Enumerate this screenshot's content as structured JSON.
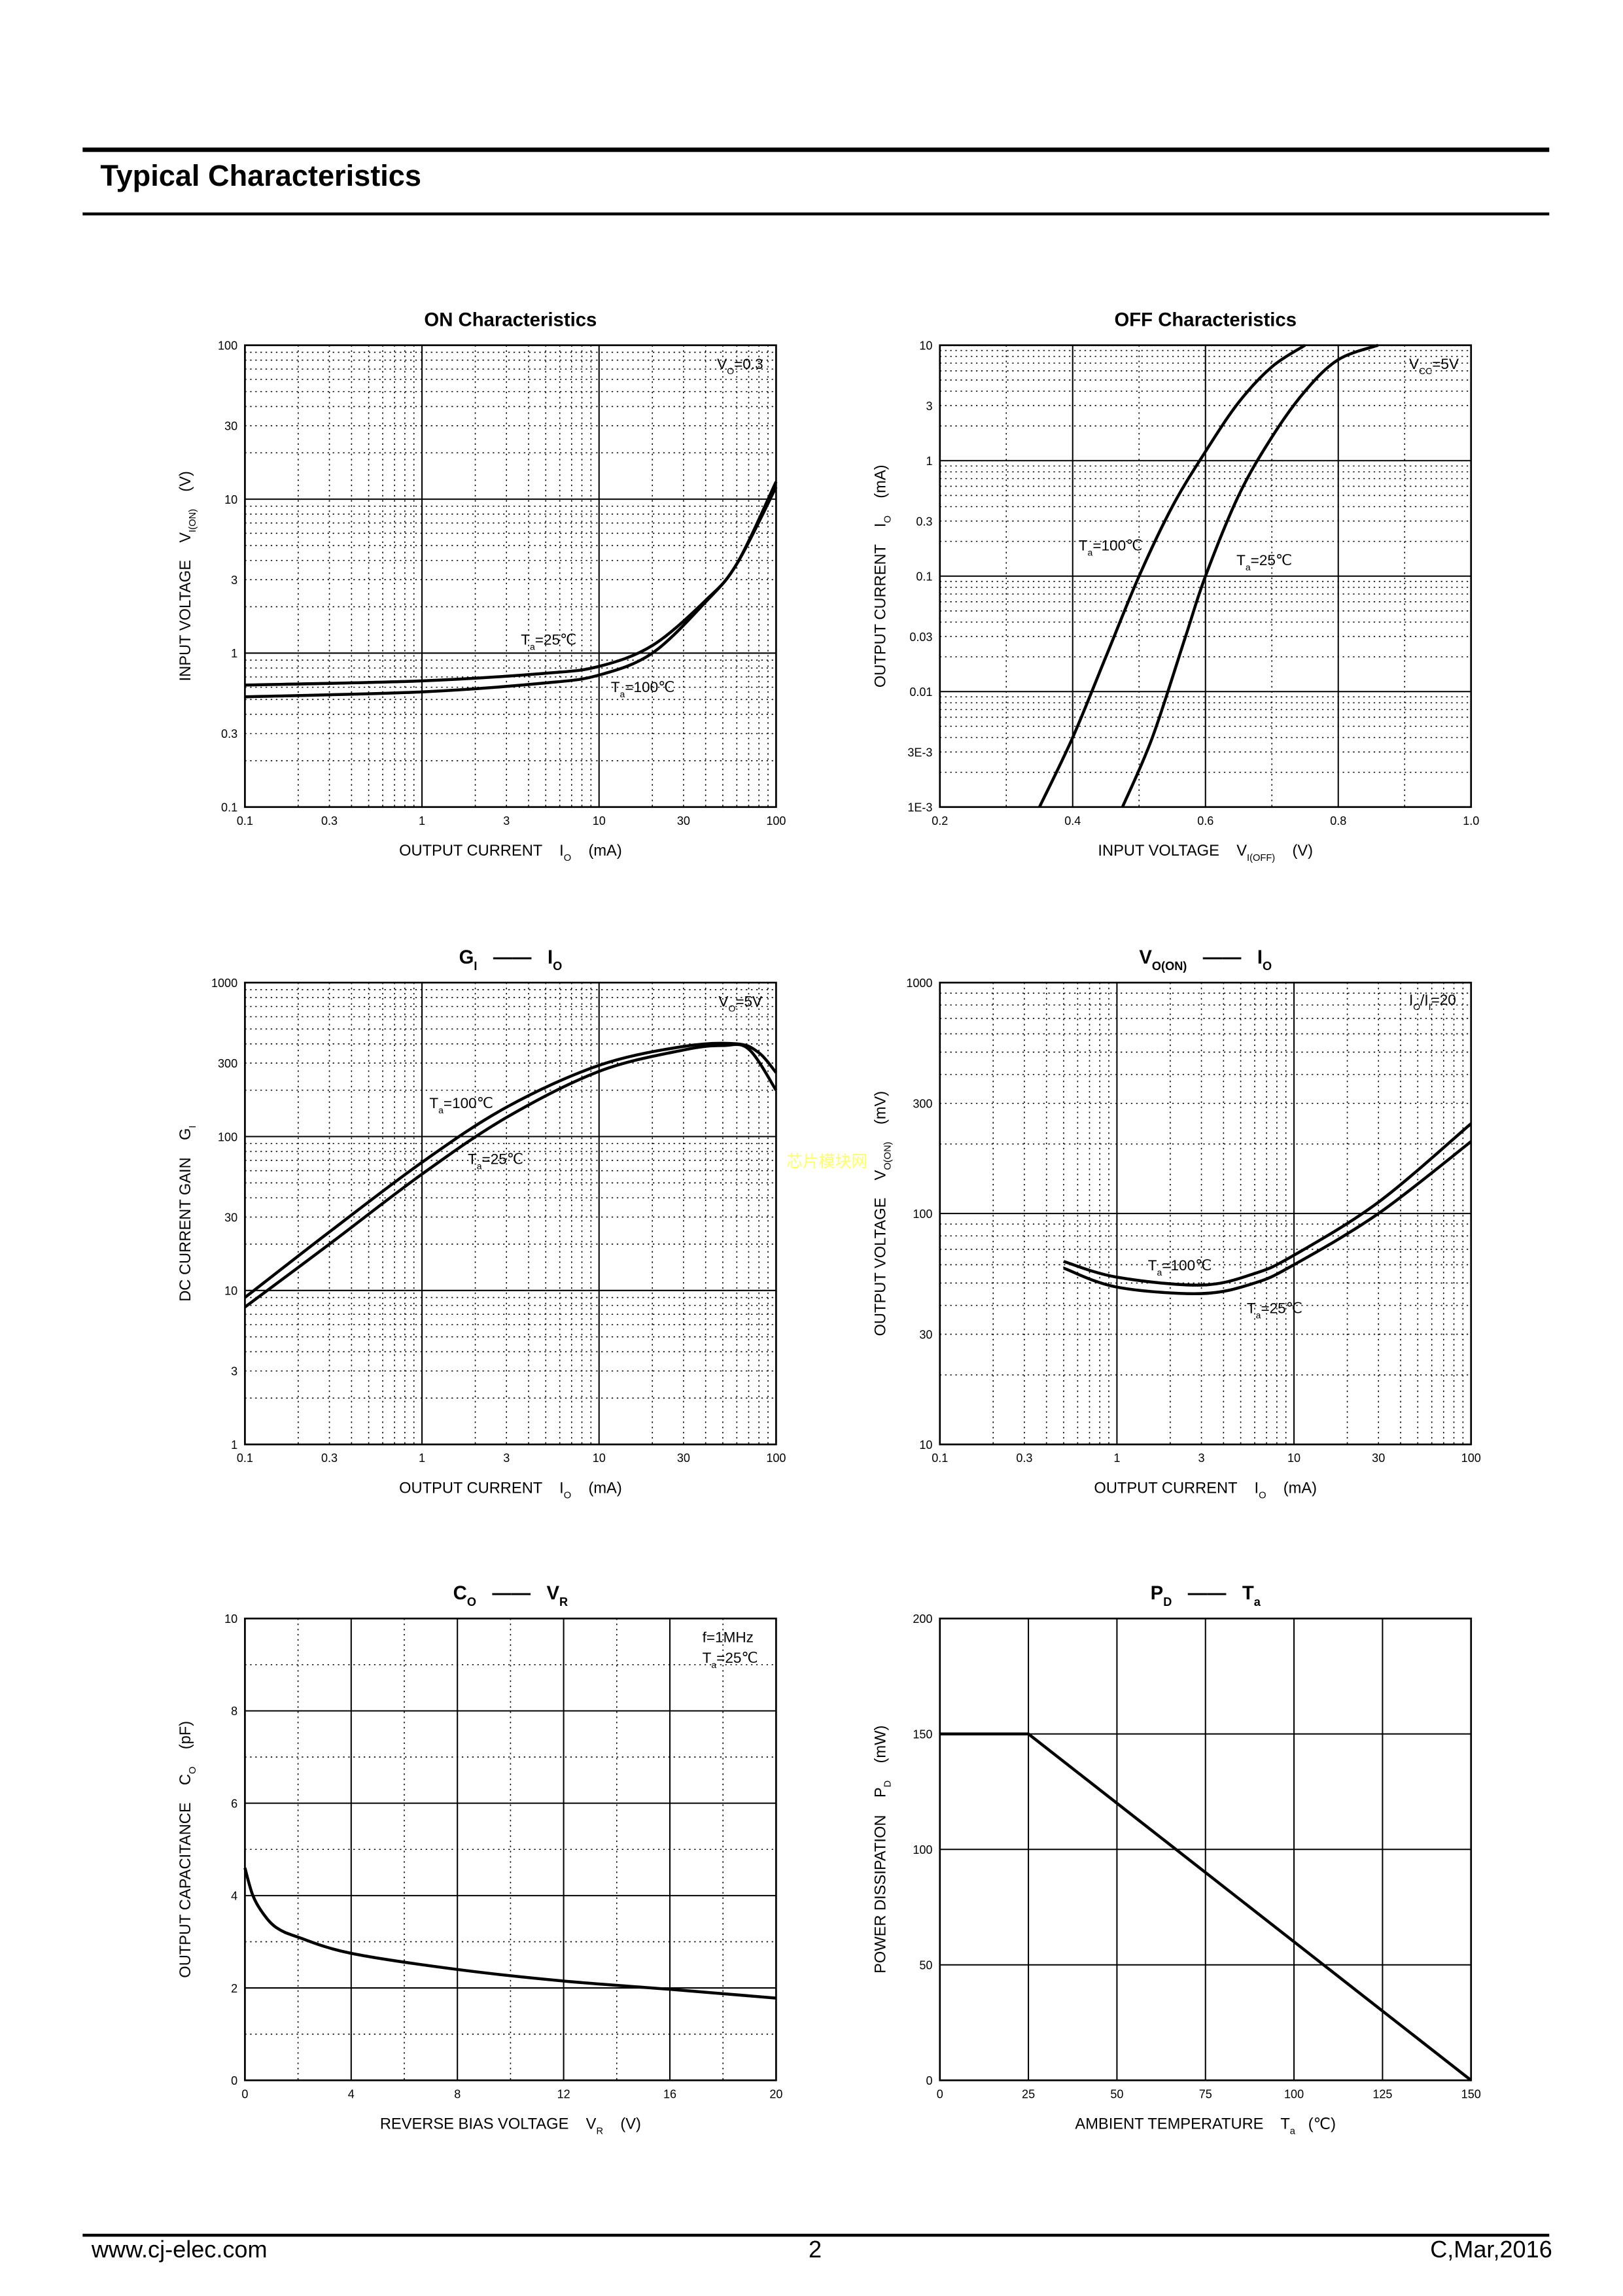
{
  "header": {
    "title": "Typical Characteristics"
  },
  "footer": {
    "website": "www.cj-elec.com",
    "page_number": "2",
    "revision": "C,Mar,2016"
  },
  "watermark": "芯片模块网",
  "chart_data": [
    {
      "type": "line",
      "title": [
        {
          "t": "ON Characteristics"
        }
      ],
      "xlabel": [
        {
          "t": "OUTPUT CURRENT    I"
        },
        {
          "t": "O",
          "sub": true
        },
        {
          "t": "    (mA)"
        }
      ],
      "ylabel": [
        {
          "t": "INPUT VOLTAGE    V"
        },
        {
          "t": "I(ON)",
          "sub": true
        },
        {
          "t": "    (V)"
        }
      ],
      "xscale": "log",
      "yscale": "log",
      "xlim": [
        0.1,
        100
      ],
      "ylim": [
        0.1,
        100
      ],
      "grid": true,
      "xticks": [
        {
          "v": 0.1,
          "l": "0.1"
        },
        {
          "v": 0.3,
          "l": "0.3"
        },
        {
          "v": 1,
          "l": "1"
        },
        {
          "v": 3,
          "l": "3"
        },
        {
          "v": 10,
          "l": "10"
        },
        {
          "v": 30,
          "l": "30"
        },
        {
          "v": 100,
          "l": "100"
        }
      ],
      "yticks": [
        {
          "v": 0.1,
          "l": "0.1"
        },
        {
          "v": 0.3,
          "l": "0.3"
        },
        {
          "v": 1,
          "l": "1"
        },
        {
          "v": 3,
          "l": "3"
        },
        {
          "v": 10,
          "l": "10"
        },
        {
          "v": 30,
          "l": "30"
        },
        {
          "v": 100,
          "l": "100"
        }
      ],
      "series": [
        {
          "name": "Ta=25℃",
          "x": [
            0.1,
            1,
            5,
            10,
            20,
            40,
            60,
            100
          ],
          "y": [
            0.62,
            0.66,
            0.74,
            0.82,
            1.12,
            2.2,
            3.8,
            13
          ]
        },
        {
          "name": "Ta=100℃",
          "x": [
            0.1,
            1,
            5,
            10,
            20,
            40,
            60,
            100
          ],
          "y": [
            0.52,
            0.56,
            0.64,
            0.72,
            1.0,
            2.15,
            3.8,
            12
          ]
        }
      ],
      "annotations": [
        [
          {
            "t": "V"
          },
          {
            "t": "O",
            "sub": true
          },
          {
            "t": "=0.3"
          }
        ],
        [
          {
            "t": "T"
          },
          {
            "t": "a",
            "sub": true
          },
          {
            "t": "=25℃"
          }
        ],
        [
          {
            "t": "T"
          },
          {
            "t": "a",
            "sub": true
          },
          {
            "t": "=100℃"
          }
        ]
      ]
    },
    {
      "type": "line",
      "title": [
        {
          "t": "OFF Characteristics"
        }
      ],
      "xlabel": [
        {
          "t": "INPUT VOLTAGE    V"
        },
        {
          "t": "I(OFF)",
          "sub": true
        },
        {
          "t": "    (V)"
        }
      ],
      "ylabel": [
        {
          "t": "OUTPUT CURRENT    I"
        },
        {
          "t": "O",
          "sub": true
        },
        {
          "t": "    (mA)"
        }
      ],
      "xscale": "linear",
      "yscale": "log",
      "xlim": [
        0.2,
        1.0
      ],
      "ylim": [
        0.001,
        10
      ],
      "grid": true,
      "xticks": [
        {
          "v": 0.2,
          "l": "0.2"
        },
        {
          "v": 0.4,
          "l": "0.4"
        },
        {
          "v": 0.6,
          "l": "0.6"
        },
        {
          "v": 0.8,
          "l": "0.8"
        },
        {
          "v": 1.0,
          "l": "1.0"
        }
      ],
      "yticks": [
        {
          "v": 0.001,
          "l": "1E-3"
        },
        {
          "v": 0.003,
          "l": "3E-3"
        },
        {
          "v": 0.01,
          "l": "0.01"
        },
        {
          "v": 0.03,
          "l": "0.03"
        },
        {
          "v": 0.1,
          "l": "0.1"
        },
        {
          "v": 0.3,
          "l": "0.3"
        },
        {
          "v": 1,
          "l": "1"
        },
        {
          "v": 3,
          "l": "3"
        },
        {
          "v": 10,
          "l": "10"
        }
      ],
      "series": [
        {
          "name": "Ta=100℃",
          "x": [
            0.35,
            0.4,
            0.45,
            0.5,
            0.55,
            0.6,
            0.65,
            0.7,
            0.75
          ],
          "y": [
            0.001,
            0.004,
            0.02,
            0.1,
            0.4,
            1.2,
            3.2,
            6.5,
            10
          ]
        },
        {
          "name": "Ta=25℃",
          "x": [
            0.475,
            0.52,
            0.57,
            0.6,
            0.65,
            0.7,
            0.75,
            0.8,
            0.86
          ],
          "y": [
            0.001,
            0.004,
            0.03,
            0.1,
            0.5,
            1.6,
            4,
            7.5,
            10
          ]
        }
      ],
      "annotations": [
        [
          {
            "t": "V"
          },
          {
            "t": "CC",
            "sub": true
          },
          {
            "t": "=5V"
          }
        ],
        [
          {
            "t": "T"
          },
          {
            "t": "a",
            "sub": true
          },
          {
            "t": "=100℃"
          }
        ],
        [
          {
            "t": "T"
          },
          {
            "t": "a",
            "sub": true
          },
          {
            "t": "=25℃"
          }
        ]
      ]
    },
    {
      "type": "line",
      "title": [
        {
          "t": "G",
          "b": true
        },
        {
          "t": "I",
          "sub": true,
          "b": true
        },
        {
          "t": "   ——   ",
          "b": true
        },
        {
          "t": "I",
          "b": true
        },
        {
          "t": "O",
          "sub": true,
          "b": true
        }
      ],
      "xlabel": [
        {
          "t": "OUTPUT CURRENT    I"
        },
        {
          "t": "O",
          "sub": true
        },
        {
          "t": "    (mA)"
        }
      ],
      "ylabel": [
        {
          "t": "DC CURRENT GAIN    G"
        },
        {
          "t": "I",
          "sub": true
        }
      ],
      "xscale": "log",
      "yscale": "log",
      "xlim": [
        0.1,
        100
      ],
      "ylim": [
        1,
        1000
      ],
      "grid": true,
      "xticks": [
        {
          "v": 0.1,
          "l": "0.1"
        },
        {
          "v": 0.3,
          "l": "0.3"
        },
        {
          "v": 1,
          "l": "1"
        },
        {
          "v": 3,
          "l": "3"
        },
        {
          "v": 10,
          "l": "10"
        },
        {
          "v": 30,
          "l": "30"
        },
        {
          "v": 100,
          "l": "100"
        }
      ],
      "yticks": [
        {
          "v": 1,
          "l": "1"
        },
        {
          "v": 3,
          "l": "3"
        },
        {
          "v": 10,
          "l": "10"
        },
        {
          "v": 30,
          "l": "30"
        },
        {
          "v": 100,
          "l": "100"
        },
        {
          "v": 300,
          "l": "300"
        },
        {
          "v": 1000,
          "l": "1000"
        }
      ],
      "series": [
        {
          "name": "Ta=100℃",
          "x": [
            0.1,
            0.3,
            1,
            3,
            10,
            30,
            60,
            80,
            100
          ],
          "y": [
            9,
            24,
            68,
            155,
            290,
            385,
            400,
            350,
            260
          ]
        },
        {
          "name": "Ta=25℃",
          "x": [
            0.1,
            0.3,
            1,
            3,
            10,
            30,
            50,
            70,
            100
          ],
          "y": [
            7.8,
            20,
            57,
            133,
            265,
            365,
            390,
            370,
            200
          ]
        }
      ],
      "annotations": [
        [
          {
            "t": "V"
          },
          {
            "t": "O",
            "sub": true
          },
          {
            "t": "=5V"
          }
        ],
        [
          {
            "t": "T"
          },
          {
            "t": "a",
            "sub": true
          },
          {
            "t": "=100℃"
          }
        ],
        [
          {
            "t": "T"
          },
          {
            "t": "a",
            "sub": true
          },
          {
            "t": "=25℃"
          }
        ]
      ]
    },
    {
      "type": "line",
      "title": [
        {
          "t": "V",
          "b": true
        },
        {
          "t": "O(ON)",
          "sub": true,
          "b": true
        },
        {
          "t": "   ——   ",
          "b": true
        },
        {
          "t": "I",
          "b": true
        },
        {
          "t": "O",
          "sub": true,
          "b": true
        }
      ],
      "xlabel": [
        {
          "t": "OUTPUT CURRENT    I"
        },
        {
          "t": "O",
          "sub": true
        },
        {
          "t": "    (mA)"
        }
      ],
      "ylabel": [
        {
          "t": "OUTPUT VOLTAGE    V"
        },
        {
          "t": "O(ON)",
          "sub": true
        },
        {
          "t": "    (mV)"
        }
      ],
      "xscale": "log",
      "yscale": "log",
      "xlim": [
        0.1,
        100
      ],
      "ylim": [
        10,
        1000
      ],
      "grid": true,
      "xticks": [
        {
          "v": 0.1,
          "l": "0.1"
        },
        {
          "v": 0.3,
          "l": "0.3"
        },
        {
          "v": 1,
          "l": "1"
        },
        {
          "v": 3,
          "l": "3"
        },
        {
          "v": 10,
          "l": "10"
        },
        {
          "v": 30,
          "l": "30"
        },
        {
          "v": 100,
          "l": "100"
        }
      ],
      "yticks": [
        {
          "v": 10,
          "l": "10"
        },
        {
          "v": 30,
          "l": "30"
        },
        {
          "v": 100,
          "l": "100"
        },
        {
          "v": 300,
          "l": "300"
        },
        {
          "v": 1000,
          "l": "1000"
        }
      ],
      "series": [
        {
          "name": "Ta=100℃",
          "x": [
            0.5,
            1,
            3,
            6,
            10,
            30,
            100
          ],
          "y": [
            62,
            53,
            49,
            55,
            66,
            112,
            245
          ]
        },
        {
          "name": "Ta=25℃",
          "x": [
            0.5,
            1,
            3,
            6,
            10,
            30,
            100
          ],
          "y": [
            58,
            48,
            45,
            50,
            60,
            100,
            205
          ]
        }
      ],
      "annotations": [
        [
          {
            "t": "I"
          },
          {
            "t": "O",
            "sub": true
          },
          {
            "t": "/I"
          },
          {
            "t": "I",
            "sub": true
          },
          {
            "t": "=20"
          }
        ],
        [
          {
            "t": "T"
          },
          {
            "t": "a",
            "sub": true
          },
          {
            "t": "=100℃"
          }
        ],
        [
          {
            "t": "T"
          },
          {
            "t": "a",
            "sub": true
          },
          {
            "t": "=25℃"
          }
        ]
      ]
    },
    {
      "type": "line",
      "title": [
        {
          "t": "C",
          "b": true
        },
        {
          "t": "O",
          "sub": true,
          "b": true
        },
        {
          "t": "   ——   ",
          "b": true
        },
        {
          "t": "V",
          "b": true
        },
        {
          "t": "R",
          "sub": true,
          "b": true
        }
      ],
      "xlabel": [
        {
          "t": "REVERSE BIAS VOLTAGE    V"
        },
        {
          "t": "R",
          "sub": true
        },
        {
          "t": "    (V)"
        }
      ],
      "ylabel": [
        {
          "t": "OUTPUT CAPACITANCE    C"
        },
        {
          "t": "O",
          "sub": true
        },
        {
          "t": "    (pF)"
        }
      ],
      "xscale": "linear",
      "yscale": "linear",
      "xlim": [
        0,
        20
      ],
      "ylim": [
        0,
        10
      ],
      "grid": true,
      "xticks": [
        {
          "v": 0,
          "l": "0"
        },
        {
          "v": 4,
          "l": "4"
        },
        {
          "v": 8,
          "l": "8"
        },
        {
          "v": 12,
          "l": "12"
        },
        {
          "v": 16,
          "l": "16"
        },
        {
          "v": 20,
          "l": "20"
        }
      ],
      "yticks": [
        {
          "v": 0,
          "l": "0"
        },
        {
          "v": 2,
          "l": "2"
        },
        {
          "v": 4,
          "l": "4"
        },
        {
          "v": 6,
          "l": "6"
        },
        {
          "v": 8,
          "l": "8"
        },
        {
          "v": 10,
          "l": "10"
        }
      ],
      "series": [
        {
          "name": "Co",
          "x": [
            0,
            0.3,
            0.7,
            1.2,
            2,
            4,
            8,
            12,
            16,
            20
          ],
          "y": [
            4.6,
            4.0,
            3.6,
            3.3,
            3.1,
            2.75,
            2.4,
            2.15,
            1.97,
            1.78
          ]
        }
      ],
      "annotations": [
        [
          {
            "t": "f=1MHz"
          }
        ],
        [
          {
            "t": "T"
          },
          {
            "t": "a",
            "sub": true
          },
          {
            "t": "=25℃"
          }
        ]
      ]
    },
    {
      "type": "line",
      "title": [
        {
          "t": "P",
          "b": true
        },
        {
          "t": "D",
          "sub": true,
          "b": true
        },
        {
          "t": "   ——   ",
          "b": true
        },
        {
          "t": "T",
          "b": true
        },
        {
          "t": "a",
          "sub": true,
          "b": true
        }
      ],
      "xlabel": [
        {
          "t": "AMBIENT TEMPERATURE    T"
        },
        {
          "t": "a",
          "sub": true
        },
        {
          "t": "   (℃)"
        }
      ],
      "ylabel": [
        {
          "t": "POWER DISSIPATION    P"
        },
        {
          "t": "D",
          "sub": true
        },
        {
          "t": "    (mW)"
        }
      ],
      "xscale": "linear",
      "yscale": "linear",
      "xlim": [
        0,
        150
      ],
      "ylim": [
        0,
        200
      ],
      "grid": true,
      "xticks": [
        {
          "v": 0,
          "l": "0"
        },
        {
          "v": 25,
          "l": "25"
        },
        {
          "v": 50,
          "l": "50"
        },
        {
          "v": 75,
          "l": "75"
        },
        {
          "v": 100,
          "l": "100"
        },
        {
          "v": 125,
          "l": "125"
        },
        {
          "v": 150,
          "l": "150"
        }
      ],
      "yticks": [
        {
          "v": 0,
          "l": "0"
        },
        {
          "v": 50,
          "l": "50"
        },
        {
          "v": 100,
          "l": "100"
        },
        {
          "v": 150,
          "l": "150"
        },
        {
          "v": 200,
          "l": "200"
        }
      ],
      "series": [
        {
          "name": "PD",
          "x": [
            0,
            25,
            150
          ],
          "y": [
            150,
            150,
            0
          ]
        }
      ],
      "annotations": []
    }
  ]
}
